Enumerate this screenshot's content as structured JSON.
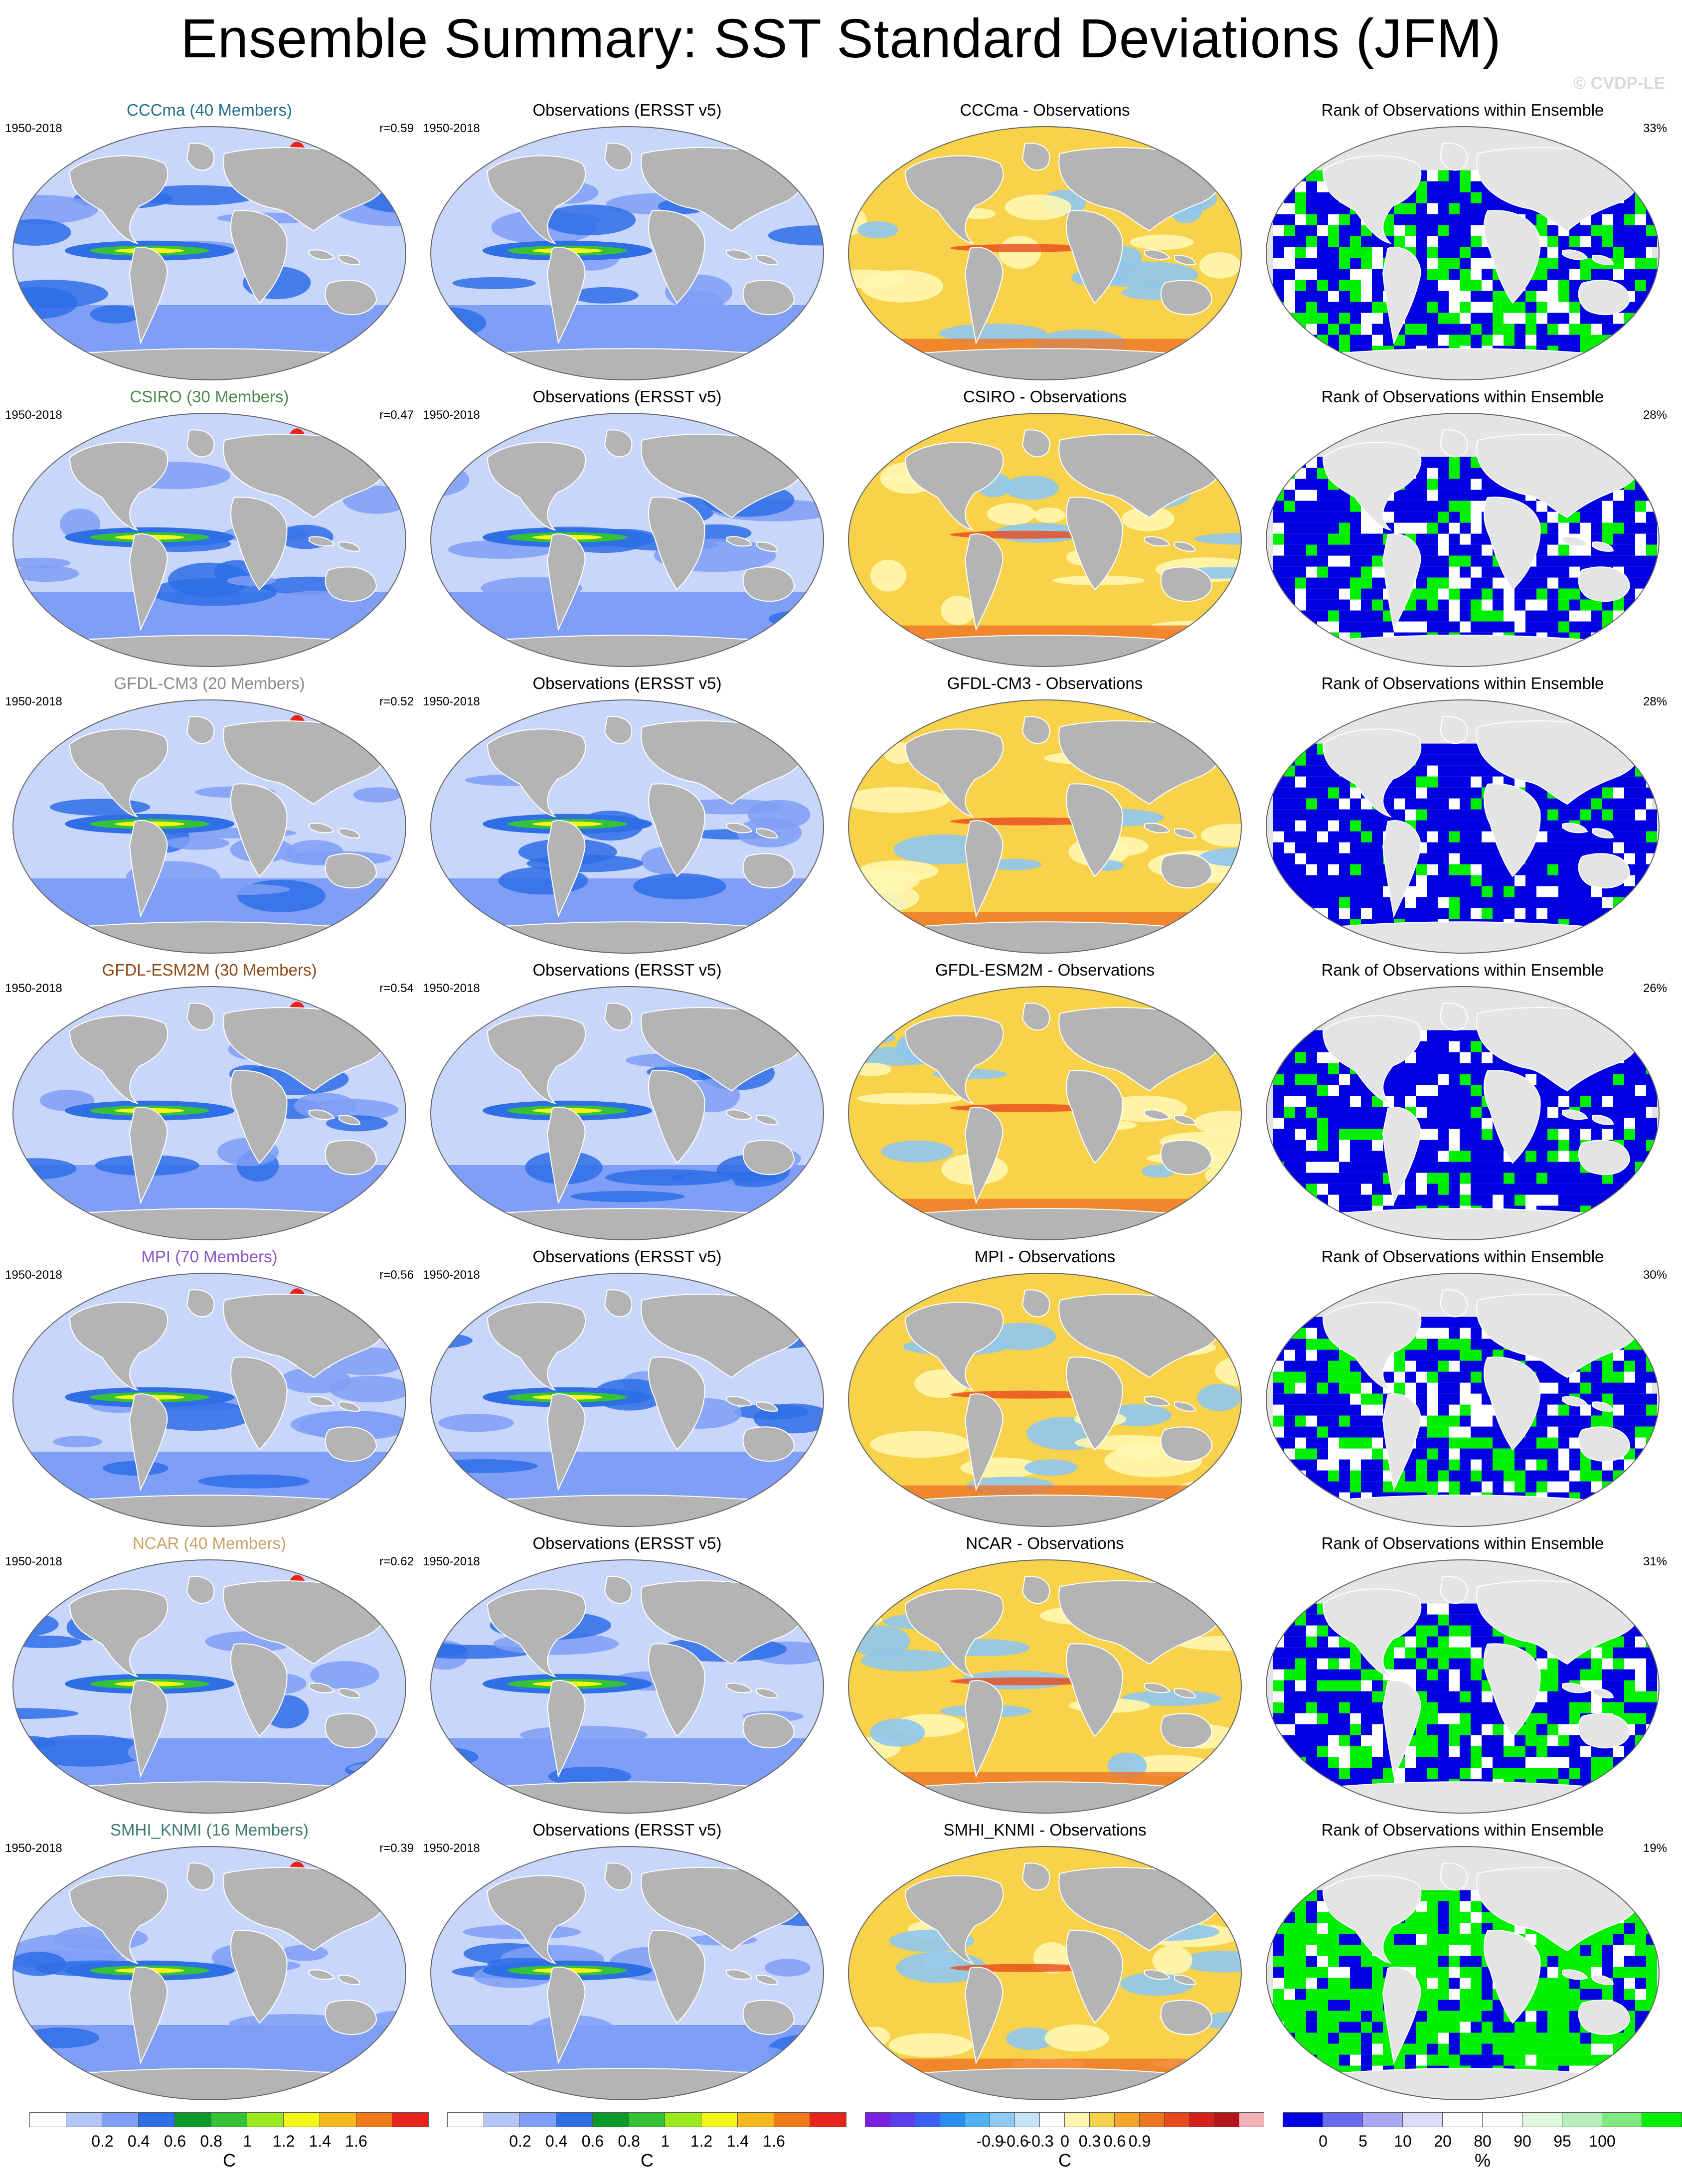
{
  "title": "Ensemble Summary: SST Standard Deviations (JFM)",
  "watermark": "© CVDP-LE",
  "period": "1950-2018",
  "column_titles": {
    "obs": "Observations (ERSST v5)",
    "diff_suffix": " - Observations",
    "rank": "Rank of Observations within Ensemble"
  },
  "colors": {
    "land": "#b4b4b4",
    "ocean_pale": "#c8d6fb",
    "ocean_mid": "#7f9ef5",
    "ocean_strong": "#2e6fe6",
    "band_green": "#36c236",
    "band_yellow": "#f5f518",
    "band_red": "#e8231a",
    "diff_warm": "#f7d24a",
    "diff_cool": "#8fc7ef",
    "rank_blue": "#0000e0",
    "rank_green": "#00f000",
    "rank_pale": "#e4e4e4"
  },
  "models": [
    {
      "name": "CCCma (40 Members)",
      "short": "CCCma",
      "color": "#1f6f8b",
      "r": "r=0.59",
      "rank_pct": "33%",
      "blue": 0.5,
      "green": 0.3
    },
    {
      "name": "CSIRO (30 Members)",
      "short": "CSIRO",
      "color": "#4b8a4b",
      "r": "r=0.47",
      "rank_pct": "28%",
      "blue": 0.62,
      "green": 0.18
    },
    {
      "name": "GFDL-CM3 (20 Members)",
      "short": "GFDL-CM3",
      "color": "#8a8a8a",
      "r": "r=0.52",
      "rank_pct": "28%",
      "blue": 0.72,
      "green": 0.15
    },
    {
      "name": "GFDL-ESM2M (30 Members)",
      "short": "GFDL-ESM2M",
      "color": "#8b4a14",
      "r": "r=0.54",
      "rank_pct": "26%",
      "blue": 0.74,
      "green": 0.12
    },
    {
      "name": "MPI (70 Members)",
      "short": "MPI",
      "color": "#8a55c9",
      "r": "r=0.56",
      "rank_pct": "30%",
      "blue": 0.6,
      "green": 0.22
    },
    {
      "name": "NCAR (40 Members)",
      "short": "NCAR",
      "color": "#c9a26b",
      "r": "r=0.62",
      "rank_pct": "31%",
      "blue": 0.55,
      "green": 0.28
    },
    {
      "name": "SMHI_KNMI (16 Members)",
      "short": "SMHI_KNMI",
      "color": "#3d7a6e",
      "r": "r=0.39",
      "rank_pct": "19%",
      "blue": 0.25,
      "green": 0.65
    }
  ],
  "colorbars": [
    {
      "colors": [
        "#ffffff",
        "#b4c6f7",
        "#7f9ef5",
        "#2e6fe6",
        "#0a9a2a",
        "#36c236",
        "#9bea1e",
        "#f5f518",
        "#f5b81c",
        "#f07a18",
        "#e8231a"
      ],
      "labels": [
        "0.2",
        "0.4",
        "0.6",
        "0.8",
        "1",
        "1.2",
        "1.4",
        "1.6"
      ],
      "unit": "C"
    },
    {
      "colors": [
        "#ffffff",
        "#b4c6f7",
        "#7f9ef5",
        "#2e6fe6",
        "#0a9a2a",
        "#36c236",
        "#9bea1e",
        "#f5f518",
        "#f5b81c",
        "#f07a18",
        "#e8231a"
      ],
      "labels": [
        "0.2",
        "0.4",
        "0.6",
        "0.8",
        "1",
        "1.2",
        "1.4",
        "1.6"
      ],
      "unit": "C"
    },
    {
      "colors": [
        "#7a1fe0",
        "#5a3ef0",
        "#3a5ff5",
        "#2a8ef0",
        "#4fb3f2",
        "#8fcaf2",
        "#c7e3f7",
        "#ffffff",
        "#fff6b0",
        "#f7d24a",
        "#f5a52a",
        "#ef7424",
        "#e84a1e",
        "#d6201c",
        "#b5141a",
        "#f2b3b8"
      ],
      "labels": [
        "-0.9",
        "-0.6",
        "-0.3",
        "0",
        "0.3",
        "0.6",
        "0.9"
      ],
      "unit": "C"
    },
    {
      "colors": [
        "#0000e0",
        "#6a6af0",
        "#a8a8f5",
        "#dcdcfa",
        "#ffffff",
        "#ffffff",
        "#e0f7e0",
        "#b8efb8",
        "#7fe87f",
        "#00f000"
      ],
      "labels": [
        "0",
        "5",
        "10",
        "20",
        "80",
        "90",
        "95",
        "100"
      ],
      "unit": "%"
    }
  ]
}
